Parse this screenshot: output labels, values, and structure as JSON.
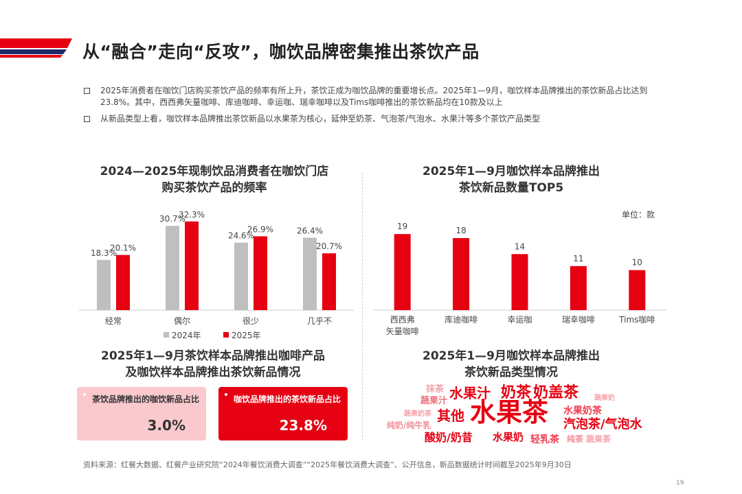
{
  "title": "从“融合”走向“反攻”，咖饮品牌密集推出茶饮产品",
  "bullets": [
    "2025年消费者在咖饮门店购买茶饮产品的频率有所上升，茶饮正成为咖饮品牌的重要增长点。2025年1—9月，咖饮样本品牌推出的茶饮新品占比达到23.8%。其中，西西弗矢量咖啡、库迪咖啡、幸运咖、瑞幸咖啡以及Tims咖啡推出的茶饮新品均在10款及以上",
    "从新品类型上看，咖饮样本品牌推出茶饮新品以水果茶为核心，延伸至奶茶、气泡茶/气泡水、水果汁等多个茶饮产品类型"
  ],
  "chart_data": [
    {
      "type": "bar",
      "title_line1": "2024—2025年现制饮品消费者在咖饮门店",
      "title_line2": "购买茶饮产品的频率",
      "categories": [
        "经常",
        "偶尔",
        "很少",
        "几乎不"
      ],
      "series": [
        {
          "name": "2024年",
          "values": [
            18.3,
            30.7,
            24.6,
            26.4
          ],
          "color": "#bfbfbf"
        },
        {
          "name": "2025年",
          "values": [
            20.1,
            32.3,
            26.9,
            20.7
          ],
          "color": "#e60012"
        }
      ],
      "ylim": [
        0,
        35
      ],
      "value_suffix": "%",
      "legend": "bottom"
    },
    {
      "type": "bar",
      "title_line1": "2025年1—9月咖饮样本品牌推出",
      "title_line2": "茶饮新品数量TOP5",
      "unit": "单位：款",
      "categories": [
        "西西弗\n矢量咖啡",
        "库迪咖啡",
        "幸运咖",
        "瑞幸咖啡",
        "Tims咖啡"
      ],
      "values": [
        19,
        18,
        14,
        11,
        10
      ],
      "color": "#e60012",
      "ylim": [
        0,
        24
      ]
    }
  ],
  "coffee_section": {
    "title_line1": "2025年1—9月茶饮样本品牌推出咖啡产品",
    "title_line2": "及咖饮样本品牌推出茶饮新品情况",
    "card1": {
      "label": "茶饮品牌推出的咖饮新品占比",
      "value": "3.0%"
    },
    "card2": {
      "label": "咖饮品牌推出的茶饮新品占比",
      "value": "23.8%"
    }
  },
  "wordcloud": {
    "title_line1": "2025年1—9月咖饮样本品牌推出",
    "title_line2": "茶饮新品类型情况",
    "words": [
      "抹茶",
      "蔬果汁",
      "水果汁",
      "奶茶",
      "奶盖茶",
      "蔬果奶",
      "蔬果奶茶",
      "其他",
      "水果茶",
      "水果奶茶",
      "纯奶/纯牛乳",
      "汽泡茶/气泡水",
      "酸奶/奶昔",
      "水果奶",
      "轻乳茶",
      "纯茶",
      "蔬果茶"
    ]
  },
  "source": "资料来源：红餐大数据、红餐产业研究院“2024年餐饮消费大调查”“2025年餐饮消费大调查”、公开信息，新品数据统计时间截至2025年9月30日",
  "page_number": "19"
}
